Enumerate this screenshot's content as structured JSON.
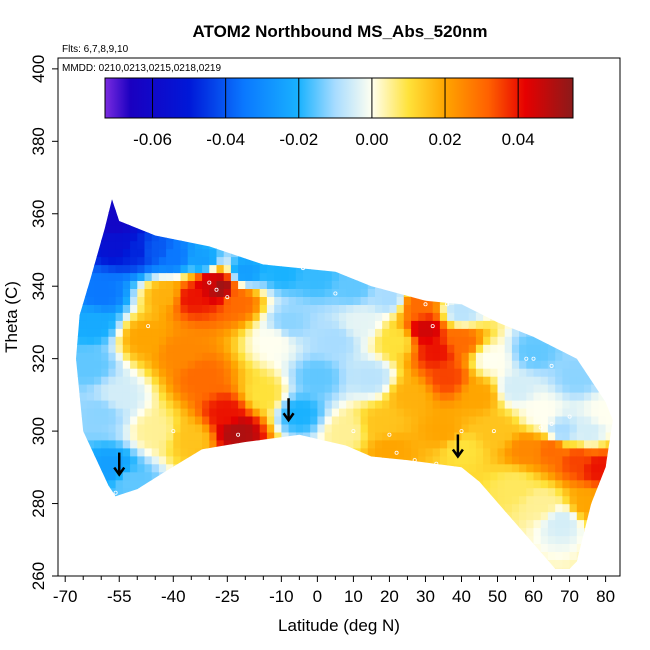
{
  "chart_data": {
    "type": "heatmap",
    "title": "ATOM2 Northbound MS_Abs_520nm",
    "annotations": {
      "flights": "Flts: 6,7,8,9,10",
      "dates": "MMDD: 0210,0213,0215,0218,0219"
    },
    "xlabel": "Latitude (deg N)",
    "ylabel": "Theta (C)",
    "xlim": [
      -72,
      84
    ],
    "ylim": [
      260,
      403
    ],
    "x_ticks": [
      -70,
      -55,
      -40,
      -25,
      -10,
      0,
      10,
      20,
      30,
      40,
      50,
      60,
      70,
      80
    ],
    "x_minor_ticks": [
      -65,
      -60,
      -50,
      -45,
      -35,
      -30,
      -20,
      -15,
      -5,
      5,
      15,
      25,
      35,
      45,
      55,
      65,
      75
    ],
    "y_ticks": [
      260,
      280,
      300,
      320,
      340,
      360,
      380,
      400
    ],
    "colorbar": {
      "range": [
        -0.073,
        0.055
      ],
      "ticks": [
        -0.06,
        -0.04,
        -0.02,
        0.0,
        0.02,
        0.04
      ],
      "tick_labels": [
        "-0.06",
        "-0.04",
        "-0.02",
        "0.00",
        "0.02",
        "0.04"
      ],
      "stops": [
        {
          "value": -0.073,
          "color": "#7b2be0"
        },
        {
          "value": -0.066,
          "color": "#1a00c0"
        },
        {
          "value": -0.05,
          "color": "#0018d8"
        },
        {
          "value": -0.035,
          "color": "#0a78ff"
        },
        {
          "value": -0.02,
          "color": "#19b2ff"
        },
        {
          "value": -0.01,
          "color": "#a8dcff"
        },
        {
          "value": 0.0,
          "color": "#fffff0"
        },
        {
          "value": 0.01,
          "color": "#ffe23a"
        },
        {
          "value": 0.02,
          "color": "#ffa500"
        },
        {
          "value": 0.032,
          "color": "#ff6000"
        },
        {
          "value": 0.042,
          "color": "#e60000"
        },
        {
          "value": 0.055,
          "color": "#8b1a1a"
        }
      ]
    },
    "coverage": {
      "top": [
        [
          -57,
          364
        ],
        [
          -55,
          358
        ],
        [
          -45,
          354
        ],
        [
          -30,
          351
        ],
        [
          -15,
          346
        ],
        [
          -5,
          345
        ],
        [
          5,
          344
        ],
        [
          15,
          340
        ],
        [
          30,
          336
        ],
        [
          40,
          335
        ],
        [
          50,
          330
        ],
        [
          60,
          326
        ],
        [
          72,
          320
        ],
        [
          80,
          308
        ],
        [
          82,
          303
        ]
      ],
      "bottom": [
        [
          82,
          303
        ],
        [
          80,
          290
        ],
        [
          76,
          280
        ],
        [
          72,
          264
        ],
        [
          70,
          262
        ],
        [
          66,
          262
        ],
        [
          45,
          286
        ],
        [
          40,
          290
        ],
        [
          25,
          292
        ],
        [
          15,
          293
        ],
        [
          8,
          296
        ],
        [
          -5,
          299
        ],
        [
          -20,
          297
        ],
        [
          -32,
          295
        ],
        [
          -42,
          289
        ],
        [
          -50,
          284
        ],
        [
          -56,
          282
        ],
        [
          -58,
          285
        ],
        [
          -65,
          300
        ],
        [
          -67,
          320
        ],
        [
          -66,
          332
        ],
        [
          -63,
          342
        ],
        [
          -59,
          356
        ],
        [
          -57,
          364
        ]
      ]
    },
    "field_points": [
      {
        "lat": -56,
        "theta": 358,
        "value": -0.062
      },
      {
        "lat": -55,
        "theta": 352,
        "value": -0.055
      },
      {
        "lat": -50,
        "theta": 350,
        "value": -0.048
      },
      {
        "lat": -45,
        "theta": 350,
        "value": -0.04
      },
      {
        "lat": -40,
        "theta": 348,
        "value": -0.035
      },
      {
        "lat": -32,
        "theta": 347,
        "value": -0.025
      },
      {
        "lat": -20,
        "theta": 344,
        "value": -0.025
      },
      {
        "lat": -10,
        "theta": 344,
        "value": -0.02
      },
      {
        "lat": 0,
        "theta": 343,
        "value": -0.018
      },
      {
        "lat": 10,
        "theta": 340,
        "value": -0.015
      },
      {
        "lat": 20,
        "theta": 337,
        "value": -0.01
      },
      {
        "lat": 40,
        "theta": 333,
        "value": -0.008
      },
      {
        "lat": 60,
        "theta": 322,
        "value": -0.015
      },
      {
        "lat": 72,
        "theta": 315,
        "value": -0.012
      },
      {
        "lat": -60,
        "theta": 338,
        "value": -0.035
      },
      {
        "lat": -62,
        "theta": 330,
        "value": -0.022
      },
      {
        "lat": -63,
        "theta": 318,
        "value": -0.015
      },
      {
        "lat": -60,
        "theta": 305,
        "value": -0.012
      },
      {
        "lat": -57,
        "theta": 290,
        "value": -0.025
      },
      {
        "lat": -52,
        "theta": 286,
        "value": -0.015
      },
      {
        "lat": -55,
        "theta": 310,
        "value": -0.005
      },
      {
        "lat": -48,
        "theta": 326,
        "value": 0.02
      },
      {
        "lat": -42,
        "theta": 338,
        "value": 0.018
      },
      {
        "lat": -35,
        "theta": 337,
        "value": 0.04
      },
      {
        "lat": -30,
        "theta": 341,
        "value": 0.045
      },
      {
        "lat": -27,
        "theta": 340,
        "value": 0.052
      },
      {
        "lat": -22,
        "theta": 336,
        "value": 0.03
      },
      {
        "lat": -38,
        "theta": 322,
        "value": 0.025
      },
      {
        "lat": -32,
        "theta": 315,
        "value": 0.03
      },
      {
        "lat": -25,
        "theta": 305,
        "value": 0.04
      },
      {
        "lat": -22,
        "theta": 300,
        "value": 0.05
      },
      {
        "lat": -35,
        "theta": 298,
        "value": 0.015
      },
      {
        "lat": -45,
        "theta": 300,
        "value": 0.005
      },
      {
        "lat": -15,
        "theta": 310,
        "value": 0.01
      },
      {
        "lat": -12,
        "theta": 325,
        "value": 0.0
      },
      {
        "lat": -8,
        "theta": 330,
        "value": -0.012
      },
      {
        "lat": -5,
        "theta": 305,
        "value": -0.02
      },
      {
        "lat": 0,
        "theta": 315,
        "value": -0.015
      },
      {
        "lat": 5,
        "theta": 325,
        "value": -0.01
      },
      {
        "lat": 8,
        "theta": 300,
        "value": 0.005
      },
      {
        "lat": 12,
        "theta": 330,
        "value": -0.003
      },
      {
        "lat": 15,
        "theta": 315,
        "value": -0.008
      },
      {
        "lat": 18,
        "theta": 302,
        "value": 0.015
      },
      {
        "lat": 20,
        "theta": 295,
        "value": 0.02
      },
      {
        "lat": 22,
        "theta": 325,
        "value": 0.01
      },
      {
        "lat": 26,
        "theta": 310,
        "value": 0.018
      },
      {
        "lat": 28,
        "theta": 335,
        "value": 0.03
      },
      {
        "lat": 30,
        "theta": 328,
        "value": 0.045
      },
      {
        "lat": 33,
        "theta": 322,
        "value": 0.04
      },
      {
        "lat": 36,
        "theta": 315,
        "value": 0.035
      },
      {
        "lat": 35,
        "theta": 300,
        "value": 0.02
      },
      {
        "lat": 40,
        "theta": 325,
        "value": 0.03
      },
      {
        "lat": 40,
        "theta": 295,
        "value": 0.01
      },
      {
        "lat": 45,
        "theta": 310,
        "value": 0.02
      },
      {
        "lat": 48,
        "theta": 320,
        "value": 0.0
      },
      {
        "lat": 50,
        "theta": 300,
        "value": 0.015
      },
      {
        "lat": 55,
        "theta": 312,
        "value": -0.005
      },
      {
        "lat": 58,
        "theta": 295,
        "value": 0.025
      },
      {
        "lat": 62,
        "theta": 305,
        "value": 0.0
      },
      {
        "lat": 65,
        "theta": 295,
        "value": 0.03
      },
      {
        "lat": 68,
        "theta": 300,
        "value": -0.01
      },
      {
        "lat": 72,
        "theta": 292,
        "value": 0.035
      },
      {
        "lat": 75,
        "theta": 300,
        "value": -0.005
      },
      {
        "lat": 78,
        "theta": 290,
        "value": 0.04
      },
      {
        "lat": 80,
        "theta": 305,
        "value": 0.0
      },
      {
        "lat": 68,
        "theta": 275,
        "value": -0.005
      },
      {
        "lat": 62,
        "theta": 280,
        "value": 0.005
      },
      {
        "lat": 55,
        "theta": 285,
        "value": 0.008
      },
      {
        "lat": 75,
        "theta": 280,
        "value": 0.02
      }
    ],
    "sample_points": [
      {
        "lat": -30,
        "theta": 341
      },
      {
        "lat": -28,
        "theta": 339
      },
      {
        "lat": -25,
        "theta": 337
      },
      {
        "lat": -47,
        "theta": 329
      },
      {
        "lat": -22,
        "theta": 299
      },
      {
        "lat": -56,
        "theta": 283
      },
      {
        "lat": -40,
        "theta": 300
      },
      {
        "lat": 5,
        "theta": 338
      },
      {
        "lat": 10,
        "theta": 343
      },
      {
        "lat": -4,
        "theta": 345
      },
      {
        "lat": 30,
        "theta": 335
      },
      {
        "lat": 32,
        "theta": 329
      },
      {
        "lat": 36,
        "theta": 335
      },
      {
        "lat": 58,
        "theta": 320
      },
      {
        "lat": 60,
        "theta": 320
      },
      {
        "lat": 65,
        "theta": 318
      },
      {
        "lat": 65,
        "theta": 302
      },
      {
        "lat": 70,
        "theta": 304
      },
      {
        "lat": 62,
        "theta": 301
      },
      {
        "lat": 20,
        "theta": 299
      },
      {
        "lat": 22,
        "theta": 294
      },
      {
        "lat": 27,
        "theta": 292
      },
      {
        "lat": 33,
        "theta": 291
      },
      {
        "lat": 40,
        "theta": 300
      },
      {
        "lat": 49,
        "theta": 300
      },
      {
        "lat": 10,
        "theta": 300
      }
    ],
    "arrows": [
      {
        "lat": -55,
        "theta": 288
      },
      {
        "lat": -8,
        "theta": 303
      },
      {
        "lat": 39,
        "theta": 293
      }
    ]
  }
}
